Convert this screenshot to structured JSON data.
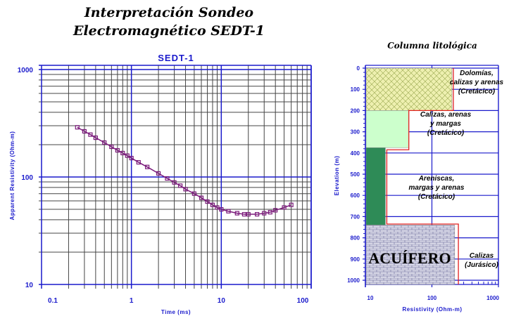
{
  "header": {
    "title_line1": "Interpretación Sondeo",
    "title_line2": "Electromagnético SEDT-1"
  },
  "colors": {
    "axis_blue": "#1a1acc",
    "grid_gray": "#444444",
    "curve": "#7a1a7a",
    "model_red": "#e02020"
  },
  "chart_data": [
    {
      "type": "line",
      "title": "SEDT-1",
      "xlabel": "Time (ms)",
      "ylabel": "Apparent Resistivity (Ohm-m)",
      "xscale": "log",
      "yscale": "log",
      "xlim": [
        0.1,
        100
      ],
      "ylim": [
        10,
        1000
      ],
      "grid": true,
      "x_tick_labels": [
        "0.1",
        "1",
        "10",
        "100"
      ],
      "y_tick_labels": [
        "10",
        "100",
        "1000"
      ],
      "marker": "square",
      "x": [
        0.25,
        0.3,
        0.35,
        0.4,
        0.5,
        0.6,
        0.7,
        0.8,
        0.9,
        1,
        1.2,
        1.5,
        2,
        2.5,
        3,
        3.5,
        4,
        5,
        6,
        7,
        8,
        9,
        10,
        12,
        15,
        18,
        20,
        25,
        30,
        35,
        40,
        50,
        60
      ],
      "y": [
        290,
        266,
        248,
        232,
        209,
        191,
        177,
        167,
        158,
        150,
        137,
        124,
        108,
        97,
        89,
        83,
        77,
        70,
        64,
        59,
        55,
        52,
        50,
        48,
        46,
        45,
        45,
        45,
        46,
        47,
        49,
        52,
        55
      ]
    },
    {
      "type": "bar",
      "title": "Columna litológica",
      "xlabel": "Resistivity (Ohm-m)",
      "ylabel": "Elevation (m)",
      "xscale": "log",
      "xlim": [
        10,
        1000
      ],
      "ylim": [
        1000,
        0
      ],
      "grid": true,
      "x_tick_labels": [
        "10",
        "100",
        "1000"
      ],
      "y_tick_labels": [
        "0",
        "100",
        "200",
        "300",
        "400",
        "500",
        "600",
        "700",
        "800",
        "900",
        "1000"
      ],
      "layers": [
        {
          "top": 0,
          "bottom": 200,
          "resistivity": 200,
          "fill": "#eef0b0",
          "pattern": "crosshatch",
          "label": [
            "Dolomías,",
            "calizas y arenas",
            "(Cretácico)"
          ]
        },
        {
          "top": 200,
          "bottom": 375,
          "resistivity": 45,
          "fill": "#ccffcc",
          "pattern": "none",
          "label": [
            "Calizas, arenas",
            "y margas",
            "(Cretácico)"
          ]
        },
        {
          "top": 375,
          "bottom": 740,
          "resistivity": 20,
          "fill": "#2e8b57",
          "pattern": "none",
          "label": [
            "Areniscas,",
            "margas y arenas",
            "(Cretácico)"
          ]
        },
        {
          "top": 740,
          "bottom": 1020,
          "resistivity": 220,
          "fill": "#c8c8dc",
          "pattern": "brick",
          "label": [
            "Calizas",
            "(Jurásico)"
          ],
          "tag": "ACUÍFERO"
        }
      ],
      "model_line": [
        {
          "top": 0,
          "bottom": 200,
          "resistivity": 210
        },
        {
          "top": 200,
          "bottom": 385,
          "resistivity": 45
        },
        {
          "top": 385,
          "bottom": 735,
          "resistivity": 21
        },
        {
          "top": 735,
          "bottom": 1020,
          "resistivity": 250
        }
      ]
    }
  ]
}
